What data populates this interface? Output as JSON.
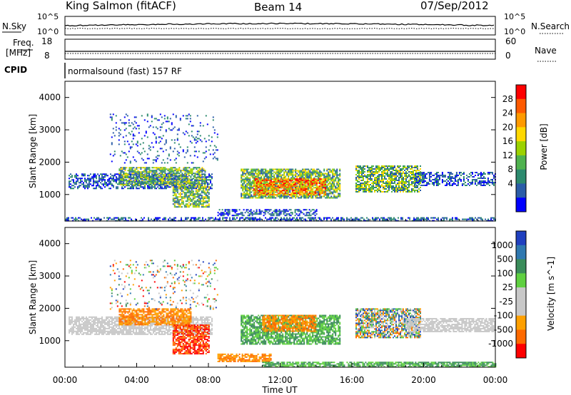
{
  "header": {
    "station": "King Salmon (fitACF)",
    "beam": "Beam 14",
    "date": "07/Sep/2012"
  },
  "status_panel": {
    "nsky_label": "N.Sky",
    "nsky_ticks": [
      "10^5",
      "10^0"
    ],
    "nsearch_label": "N.Search",
    "nsearch_ticks": [
      "10^5",
      "10^0"
    ],
    "freq_label_1": "Freq.",
    "freq_label_2": "[MHz]",
    "freq_ticks": [
      "18",
      "8"
    ],
    "nave_label": "Nave",
    "nave_ticks": [
      "60",
      "0"
    ],
    "cpid_label": "CPID",
    "cpid_value": "normalsound (fast) 157 RF"
  },
  "chart_data": [
    {
      "type": "heatmap",
      "panel": "power",
      "ylabel": "Slant Range [km]",
      "yticks": [
        "1000",
        "2000",
        "3000",
        "4000"
      ],
      "ylim": [
        180,
        4500
      ],
      "xlim": [
        0,
        24
      ],
      "xticks": [],
      "colorbar_label": "Power [dB]",
      "colorbar_ticks": [
        "28",
        "24",
        "20",
        "16",
        "12",
        "8",
        "4"
      ],
      "colors": [
        "#ff0000",
        "#ff5a00",
        "#ff9a00",
        "#ffd800",
        "#9cd200",
        "#4fb24f",
        "#2c8a6e",
        "#2b5da8",
        "#0000ff"
      ],
      "regions": [
        {
          "x0": 0.2,
          "x1": 8.2,
          "y0": 1200,
          "y1": 1650,
          "level": "low"
        },
        {
          "x0": 3.0,
          "x1": 7.8,
          "y0": 1300,
          "y1": 1850,
          "level": "mid"
        },
        {
          "x0": 6.0,
          "x1": 8.0,
          "y0": 600,
          "y1": 1300,
          "level": "mid"
        },
        {
          "x0": 9.8,
          "x1": 15.3,
          "y0": 900,
          "y1": 1800,
          "level": "mid"
        },
        {
          "x0": 10.5,
          "x1": 14.5,
          "y0": 1000,
          "y1": 1500,
          "level": "high"
        },
        {
          "x0": 16.2,
          "x1": 19.8,
          "y0": 1100,
          "y1": 1900,
          "level": "mid"
        },
        {
          "x0": 19.5,
          "x1": 24.0,
          "y0": 1300,
          "y1": 1700,
          "level": "low"
        },
        {
          "x0": 2.5,
          "x1": 8.5,
          "y0": 2000,
          "y1": 3500,
          "level": "sparse"
        },
        {
          "x0": 8.5,
          "x1": 14.0,
          "y0": 350,
          "y1": 550,
          "level": "low"
        },
        {
          "x0": 0.0,
          "x1": 24.0,
          "y0": 180,
          "y1": 300,
          "level": "low"
        }
      ]
    },
    {
      "type": "heatmap",
      "panel": "velocity",
      "ylabel": "Slant Range [km]",
      "yticks": [
        "1000",
        "2000",
        "3000",
        "4000"
      ],
      "ylim": [
        180,
        4500
      ],
      "xlim": [
        0,
        24
      ],
      "xlabel": "Time UT",
      "xticks": [
        "00:00",
        "04:00",
        "08:00",
        "12:00",
        "16:00",
        "20:00",
        "00:00"
      ],
      "colorbar_label": "Velocity [m s^-1]",
      "colorbar_ticks": [
        "1000",
        "500",
        "100",
        "25",
        "-25",
        "-100",
        "-500",
        "-1000"
      ],
      "colors": [
        "#2040c0",
        "#2f78b0",
        "#3a8c5a",
        "#5fd040",
        "#c8c8c8",
        "#c8c8c8",
        "#ffa000",
        "#ff6a00",
        "#ff0000"
      ],
      "regions": [
        {
          "x0": 0.2,
          "x1": 8.2,
          "y0": 1200,
          "y1": 1750,
          "level": "ground"
        },
        {
          "x0": 3.0,
          "x1": 7.0,
          "y0": 1500,
          "y1": 2000,
          "level": "neg"
        },
        {
          "x0": 6.0,
          "x1": 8.0,
          "y0": 600,
          "y1": 1500,
          "level": "negstrong"
        },
        {
          "x0": 9.8,
          "x1": 15.3,
          "y0": 900,
          "y1": 1800,
          "level": "pos"
        },
        {
          "x0": 11.0,
          "x1": 14.0,
          "y0": 1300,
          "y1": 1800,
          "level": "neg"
        },
        {
          "x0": 16.2,
          "x1": 19.8,
          "y0": 1100,
          "y1": 2000,
          "level": "mix"
        },
        {
          "x0": 19.0,
          "x1": 24.0,
          "y0": 1300,
          "y1": 1700,
          "level": "ground"
        },
        {
          "x0": 2.5,
          "x1": 8.5,
          "y0": 2000,
          "y1": 3500,
          "level": "sparse"
        },
        {
          "x0": 8.5,
          "x1": 11.5,
          "y0": 350,
          "y1": 600,
          "level": "neg"
        },
        {
          "x0": 11.0,
          "x1": 24.0,
          "y0": 180,
          "y1": 350,
          "level": "pos"
        }
      ]
    }
  ]
}
